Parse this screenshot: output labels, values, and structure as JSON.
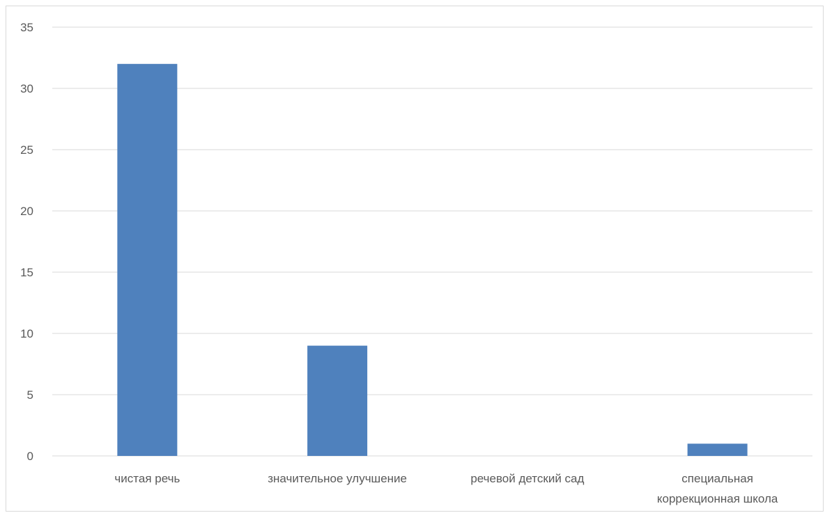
{
  "chart_data": {
    "type": "bar",
    "categories": [
      [
        "чистая речь"
      ],
      [
        "значительное улучшение"
      ],
      [
        "речевой детский сад"
      ],
      [
        "специальная",
        "коррекционная школа"
      ]
    ],
    "values": [
      32,
      9,
      0,
      1
    ],
    "ylim": [
      0,
      35
    ],
    "yticks": [
      0,
      5,
      10,
      15,
      20,
      25,
      30,
      35
    ],
    "grid": true,
    "bar_color": "#4f81bd",
    "grid_color": "#d9d9d9",
    "text_color": "#595959"
  }
}
